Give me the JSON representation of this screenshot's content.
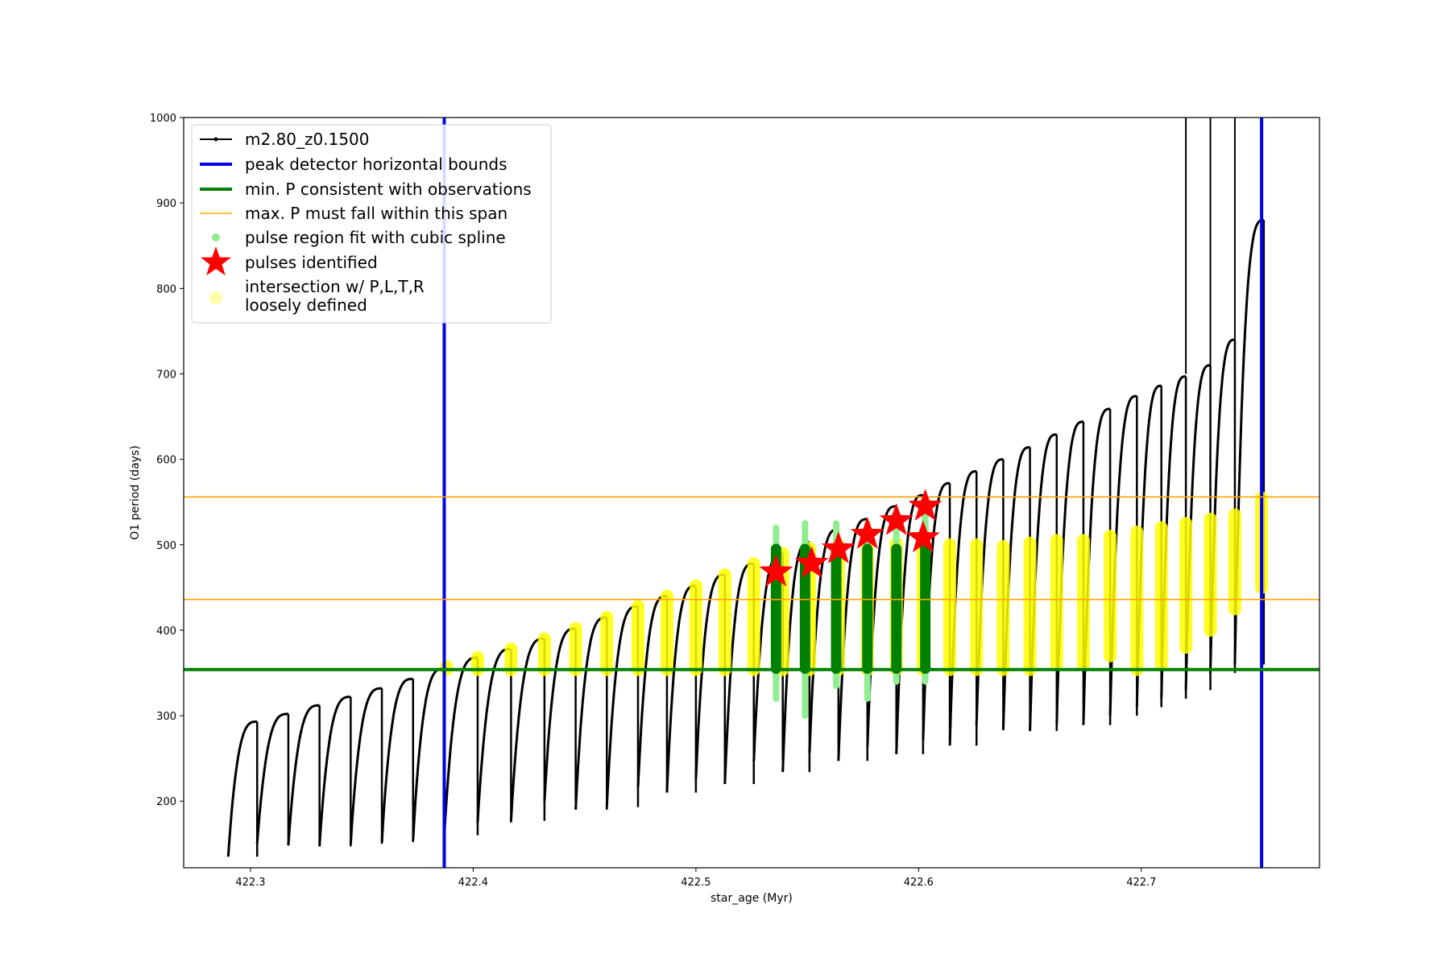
{
  "chart_data": {
    "type": "scatter",
    "title": "",
    "xlabel": "star_age (Myr)",
    "ylabel": "O1 period (days)",
    "xlim": [
      422.27,
      422.78
    ],
    "ylim": [
      122,
      1000
    ],
    "xticks": [
      422.3,
      422.4,
      422.5,
      422.6,
      422.7
    ],
    "xtick_labels": [
      "422.3",
      "422.4",
      "422.5",
      "422.6",
      "422.7"
    ],
    "yticks": [
      200,
      300,
      400,
      500,
      600,
      700,
      800,
      900,
      1000
    ],
    "ytick_labels": [
      "200",
      "300",
      "400",
      "500",
      "600",
      "700",
      "800",
      "900",
      "1000"
    ],
    "grid": false,
    "legend_position": "upper-left",
    "legend": [
      {
        "label": "m2.80_z0.1500",
        "marker": "line-dot",
        "color": "#000000"
      },
      {
        "label": "peak detector horizontal bounds",
        "marker": "thick-line",
        "color": "#0000ee"
      },
      {
        "label": "min. P consistent with observations",
        "marker": "thick-line",
        "color": "#008000"
      },
      {
        "label": "max. P must fall within this span",
        "marker": "thin-line",
        "color": "#ffa500"
      },
      {
        "label": "pulse region fit with cubic spline",
        "marker": "dot",
        "color": "#90ee90"
      },
      {
        "label": "pulses identified",
        "marker": "star",
        "color": "#ff0000"
      },
      {
        "label": "intersection w/ P,L,T,R\nloosely defined",
        "marker": "circle",
        "color": "#ffffaa"
      }
    ],
    "reference_lines": {
      "vertical_blue_x": [
        422.387,
        422.754
      ],
      "horizontal_green_y": 354,
      "horizontal_orange_y": [
        436,
        556
      ]
    },
    "cycles": [
      {
        "start": 422.29,
        "end": 422.303,
        "min": 135,
        "max": 293
      },
      {
        "start": 422.303,
        "end": 422.317,
        "min": 150,
        "max": 302
      },
      {
        "start": 422.317,
        "end": 422.331,
        "min": 148,
        "max": 312
      },
      {
        "start": 422.331,
        "end": 422.345,
        "min": 147,
        "max": 322
      },
      {
        "start": 422.345,
        "end": 422.359,
        "min": 150,
        "max": 332
      },
      {
        "start": 422.359,
        "end": 422.373,
        "min": 152,
        "max": 343
      },
      {
        "start": 422.373,
        "end": 422.387,
        "min": 155,
        "max": 355
      },
      {
        "start": 422.387,
        "end": 422.402,
        "min": 160,
        "max": 368
      },
      {
        "start": 422.402,
        "end": 422.417,
        "min": 175,
        "max": 378
      },
      {
        "start": 422.417,
        "end": 422.432,
        "min": 177,
        "max": 390
      },
      {
        "start": 422.432,
        "end": 422.446,
        "min": 200,
        "max": 402
      },
      {
        "start": 422.446,
        "end": 422.46,
        "min": 190,
        "max": 415
      },
      {
        "start": 422.46,
        "end": 422.474,
        "min": 193,
        "max": 428
      },
      {
        "start": 422.474,
        "end": 422.487,
        "min": 216,
        "max": 440
      },
      {
        "start": 422.487,
        "end": 422.5,
        "min": 210,
        "max": 452
      },
      {
        "start": 422.5,
        "end": 422.513,
        "min": 226,
        "max": 465
      },
      {
        "start": 422.513,
        "end": 422.526,
        "min": 220,
        "max": 478
      },
      {
        "start": 422.526,
        "end": 422.539,
        "min": 247,
        "max": 490
      },
      {
        "start": 422.539,
        "end": 422.551,
        "min": 234,
        "max": 503
      },
      {
        "start": 422.551,
        "end": 422.564,
        "min": 256,
        "max": 518
      },
      {
        "start": 422.564,
        "end": 422.577,
        "min": 247,
        "max": 530
      },
      {
        "start": 422.577,
        "end": 422.59,
        "min": 263,
        "max": 545
      },
      {
        "start": 422.59,
        "end": 422.602,
        "min": 255,
        "max": 558
      },
      {
        "start": 422.602,
        "end": 422.614,
        "min": 272,
        "max": 572
      },
      {
        "start": 422.614,
        "end": 422.626,
        "min": 265,
        "max": 586
      },
      {
        "start": 422.626,
        "end": 422.638,
        "min": 289,
        "max": 600
      },
      {
        "start": 422.638,
        "end": 422.65,
        "min": 283,
        "max": 614
      },
      {
        "start": 422.65,
        "end": 422.662,
        "min": 282,
        "max": 629
      },
      {
        "start": 422.662,
        "end": 422.674,
        "min": 290,
        "max": 644
      },
      {
        "start": 422.674,
        "end": 422.686,
        "min": 289,
        "max": 659
      },
      {
        "start": 422.686,
        "end": 422.698,
        "min": 300,
        "max": 674
      },
      {
        "start": 422.698,
        "end": 422.709,
        "min": 310,
        "max": 686
      },
      {
        "start": 422.709,
        "end": 422.72,
        "min": 320,
        "max": 697
      },
      {
        "start": 422.72,
        "end": 422.731,
        "min": 330,
        "max": 710
      },
      {
        "start": 422.731,
        "end": 422.742,
        "min": 350,
        "max": 740
      },
      {
        "start": 422.742,
        "end": 422.755,
        "min": 360,
        "max": 880
      }
    ],
    "spikes": [
      {
        "x": 422.72,
        "top": 1000
      },
      {
        "x": 422.731,
        "top": 1000
      },
      {
        "x": 422.742,
        "top": 1000
      },
      {
        "x": 422.754,
        "top": 1000
      }
    ],
    "pulse_region_x": [
      422.536,
      422.549,
      422.563,
      422.577,
      422.59,
      422.603
    ],
    "pulse_region_y": {
      "low": [
        320,
        300,
        335,
        320,
        340,
        340
      ],
      "high": [
        520,
        525,
        525,
        525,
        530,
        535
      ]
    },
    "pulse_fit_x": [
      422.536,
      422.549,
      422.563,
      422.577,
      422.59,
      422.603
    ],
    "pulse_fit_y": {
      "low": [
        355,
        355,
        355,
        355,
        355,
        355
      ],
      "high": [
        495,
        495,
        495,
        495,
        495,
        495
      ]
    },
    "pulses_identified": {
      "x": [
        422.536,
        422.552,
        422.564,
        422.577,
        422.59,
        422.602,
        422.603
      ],
      "y": [
        468,
        478,
        495,
        512,
        528,
        508,
        545
      ]
    },
    "intersections": [
      {
        "x": 422.388,
        "low": 354,
        "high": 358
      },
      {
        "x": 422.402,
        "low": 354,
        "high": 368
      },
      {
        "x": 422.417,
        "low": 354,
        "high": 378
      },
      {
        "x": 422.432,
        "low": 354,
        "high": 390
      },
      {
        "x": 422.446,
        "low": 354,
        "high": 402
      },
      {
        "x": 422.46,
        "low": 354,
        "high": 415
      },
      {
        "x": 422.474,
        "low": 354,
        "high": 428
      },
      {
        "x": 422.487,
        "low": 354,
        "high": 440
      },
      {
        "x": 422.5,
        "low": 354,
        "high": 452
      },
      {
        "x": 422.513,
        "low": 354,
        "high": 465
      },
      {
        "x": 422.526,
        "low": 354,
        "high": 478
      },
      {
        "x": 422.539,
        "low": 354,
        "high": 490
      },
      {
        "x": 422.551,
        "low": 354,
        "high": 496
      },
      {
        "x": 422.564,
        "low": 354,
        "high": 500
      },
      {
        "x": 422.577,
        "low": 354,
        "high": 502
      },
      {
        "x": 422.59,
        "low": 354,
        "high": 502
      },
      {
        "x": 422.602,
        "low": 354,
        "high": 502
      },
      {
        "x": 422.614,
        "low": 354,
        "high": 500
      },
      {
        "x": 422.626,
        "low": 354,
        "high": 500
      },
      {
        "x": 422.638,
        "low": 354,
        "high": 498
      },
      {
        "x": 422.65,
        "low": 354,
        "high": 502
      },
      {
        "x": 422.662,
        "low": 360,
        "high": 505
      },
      {
        "x": 422.674,
        "low": 360,
        "high": 505
      },
      {
        "x": 422.686,
        "low": 370,
        "high": 510
      },
      {
        "x": 422.698,
        "low": 354,
        "high": 515
      },
      {
        "x": 422.709,
        "low": 360,
        "high": 520
      },
      {
        "x": 422.72,
        "low": 380,
        "high": 525
      },
      {
        "x": 422.731,
        "low": 400,
        "high": 530
      },
      {
        "x": 422.742,
        "low": 425,
        "high": 535
      },
      {
        "x": 422.754,
        "low": 450,
        "high": 555
      }
    ]
  }
}
